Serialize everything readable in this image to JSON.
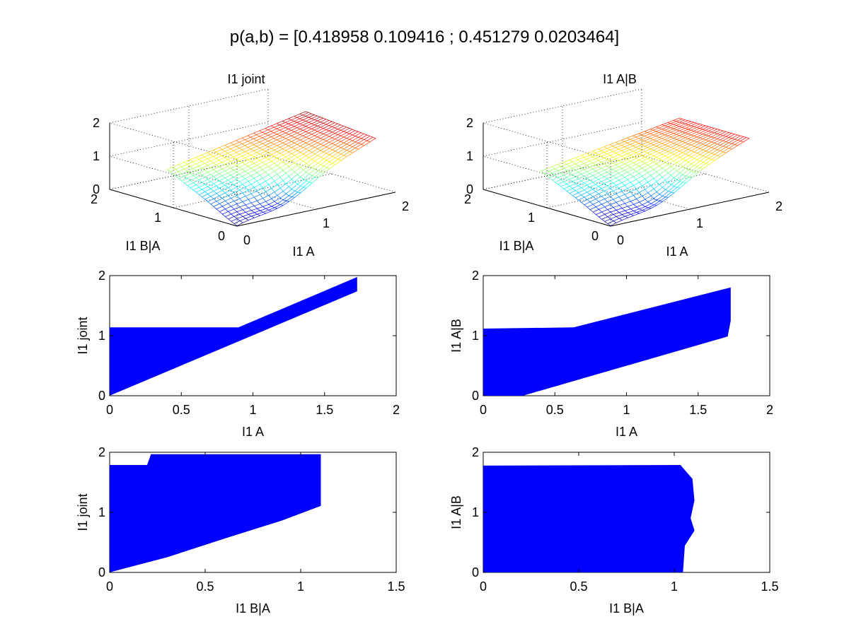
{
  "figure": {
    "title": "p(a,b) = [0.418958 0.109416 ; 0.451279 0.0203464]"
  },
  "colors": {
    "scatter": "#0000ff",
    "mesh_low": "#00008f",
    "mesh_high": "#800000",
    "background": "#ffffff"
  },
  "chart_data": [
    {
      "id": "joint-surface",
      "type": "surface",
      "title": "I1 joint",
      "xlabel": "I1 A",
      "ylabel": "I1 B|A",
      "zlabel": "",
      "xlim": [
        0,
        2
      ],
      "ylim": [
        0,
        2
      ],
      "zlim": [
        0,
        2
      ],
      "xticks": [
        "0",
        "1",
        "2"
      ],
      "yticks": [
        "0",
        "1",
        "2"
      ],
      "zticks": [
        "0",
        "1",
        "2"
      ],
      "grid": true,
      "colormap": "jet",
      "surface_desc": {
        "x_range": [
          0,
          1.75
        ],
        "y_range": [
          0,
          1.1
        ],
        "corner_z": [
          0.05,
          1.75,
          1.1,
          1.95
        ]
      }
    },
    {
      "id": "ab-surface",
      "type": "surface",
      "title": "I1 A|B",
      "xlabel": "I1 A",
      "ylabel": "I1 B|A",
      "zlabel": "",
      "xlim": [
        0,
        2
      ],
      "ylim": [
        0,
        2
      ],
      "zlim": [
        0,
        2
      ],
      "xticks": [
        "0",
        "1",
        "2"
      ],
      "yticks": [
        "0",
        "1",
        "2"
      ],
      "zticks": [
        "0",
        "1",
        "2"
      ],
      "grid": true,
      "colormap": "jet",
      "surface_desc": {
        "x_range": [
          0,
          1.75
        ],
        "y_range": [
          0,
          1.1
        ],
        "corner_z": [
          0.05,
          1.75,
          1.05,
          1.75
        ]
      }
    },
    {
      "id": "joint-vs-a",
      "type": "scatter",
      "title": "",
      "xlabel": "I1 A",
      "ylabel": "I1 joint",
      "xlim": [
        0,
        2
      ],
      "ylim": [
        0,
        2
      ],
      "xticks": [
        0,
        0.5,
        1,
        1.5,
        2
      ],
      "yticks": [
        0,
        1,
        2
      ],
      "xtick_labels": [
        "0",
        "0.5",
        "1",
        "1.5",
        "2"
      ],
      "ytick_labels": [
        "0",
        "1",
        "2"
      ],
      "upper": [
        [
          0,
          1.12
        ],
        [
          0.9,
          1.12
        ],
        [
          1.72,
          1.95
        ]
      ],
      "lower": [
        [
          0,
          0.02
        ],
        [
          1.72,
          1.75
        ]
      ]
    },
    {
      "id": "ab-vs-a",
      "type": "scatter",
      "title": "",
      "xlabel": "I1 A",
      "ylabel": "I1 A|B",
      "xlim": [
        0,
        2
      ],
      "ylim": [
        0,
        2
      ],
      "xticks": [
        0,
        0.5,
        1,
        1.5,
        2
      ],
      "yticks": [
        0,
        1,
        2
      ],
      "xtick_labels": [
        "0",
        "0.5",
        "1",
        "1.5",
        "2"
      ],
      "ytick_labels": [
        "0",
        "1",
        "2"
      ],
      "upper": [
        [
          0,
          1.1
        ],
        [
          0.63,
          1.12
        ],
        [
          1.72,
          1.78
        ]
      ],
      "lower": [
        [
          0,
          0.0
        ],
        [
          0.25,
          0.0
        ],
        [
          1.7,
          1.0
        ],
        [
          1.72,
          1.25
        ]
      ]
    },
    {
      "id": "joint-vs-ba",
      "type": "scatter",
      "title": "",
      "xlabel": "I1 B|A",
      "ylabel": "I1 joint",
      "xlim": [
        0,
        1.5
      ],
      "ylim": [
        0,
        2
      ],
      "xticks": [
        0,
        0.5,
        1,
        1.5
      ],
      "yticks": [
        0,
        1,
        2
      ],
      "xtick_labels": [
        "0",
        "0.5",
        "1",
        "1.5"
      ],
      "ytick_labels": [
        "0",
        "1",
        "2"
      ],
      "upper": [
        [
          0,
          1.77
        ],
        [
          0.2,
          1.77
        ],
        [
          0.22,
          1.95
        ],
        [
          1.1,
          1.95
        ]
      ],
      "lower": [
        [
          0,
          0.02
        ],
        [
          0.3,
          0.27
        ],
        [
          0.6,
          0.58
        ],
        [
          0.9,
          0.88
        ],
        [
          1.1,
          1.12
        ]
      ]
    },
    {
      "id": "ab-vs-ba",
      "type": "scatter",
      "title": "",
      "xlabel": "I1 B|A",
      "ylabel": "I1 A|B",
      "xlim": [
        0,
        1.5
      ],
      "ylim": [
        0,
        2
      ],
      "xticks": [
        0,
        0.5,
        1,
        1.5
      ],
      "yticks": [
        0,
        1,
        2
      ],
      "xtick_labels": [
        "0",
        "0.5",
        "1",
        "1.5"
      ],
      "ytick_labels": [
        "0",
        "1",
        "2"
      ],
      "upper": [
        [
          0,
          1.76
        ],
        [
          1.03,
          1.77
        ]
      ],
      "right_edge": [
        [
          1.03,
          1.77
        ],
        [
          1.09,
          1.55
        ],
        [
          1.1,
          1.2
        ],
        [
          1.08,
          0.9
        ],
        [
          1.1,
          0.7
        ],
        [
          1.05,
          0.45
        ],
        [
          1.04,
          0.0
        ]
      ],
      "lower": [
        [
          0,
          0.0
        ],
        [
          1.04,
          0.0
        ]
      ]
    }
  ]
}
